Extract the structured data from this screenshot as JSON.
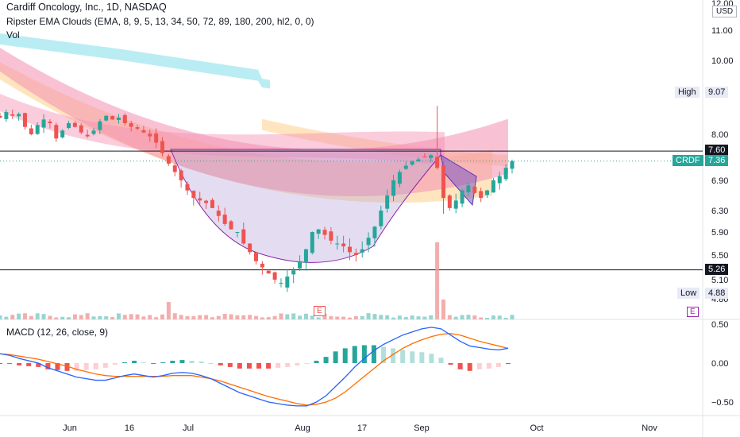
{
  "header": {
    "title": "Cardiff Oncology, Inc., 1D, NASDAQ",
    "indicator": "Ripster EMA Clouds (EMA, 8, 9, 5, 13, 34, 50, 72, 89, 180, 200, hl2, 0, 0)",
    "volume_label": "Vol",
    "currency": "USD"
  },
  "macd_label": "MACD (12, 26, close, 9)",
  "price_tags": {
    "high_label": "High",
    "high_value": "9.07",
    "low_label": "Low",
    "low_value": "4.88",
    "resistance": "7.60",
    "support": "5.26",
    "ticker": "CRDF",
    "last": "7.36"
  },
  "earnings_marker": "E",
  "colors": {
    "up": "#26a69a",
    "down": "#ef5350",
    "macd": "#2962ff",
    "signal": "#ff6d00",
    "pattern_fill": "#b39ddb",
    "cloud_pink": "#f48fb1",
    "cloud_orange": "#ffcc80",
    "cloud_cyan": "#80deea"
  },
  "chart_data": [
    {
      "type": "candlestick",
      "title": "Cardiff Oncology, Inc., 1D, NASDAQ",
      "y_ticks": [
        "12.00",
        "11.00",
        "10.00",
        "8.00",
        "6.90",
        "6.30",
        "5.90",
        "5.50",
        "5.10",
        "4.80"
      ],
      "x_ticks": [
        "Jun",
        "16",
        "Jul",
        "Aug",
        "17",
        "Sep",
        "Oct",
        "Nov"
      ],
      "horizontal_lines": [
        7.6,
        5.26
      ],
      "close_path": [
        8.45,
        8.6,
        8.5,
        8.55,
        8.2,
        8.0,
        8.25,
        8.4,
        8.3,
        7.9,
        8.1,
        8.3,
        8.2,
        8.05,
        7.95,
        8.1,
        8.35,
        8.5,
        8.4,
        8.45,
        8.3,
        8.2,
        8.15,
        8.05,
        7.95,
        7.8,
        7.55,
        7.3,
        7.1,
        6.9,
        6.7,
        6.55,
        6.5,
        6.45,
        6.35,
        6.2,
        6.05,
        5.95,
        5.9,
        5.7,
        5.55,
        5.4,
        5.3,
        5.2,
        5.1,
        5.05,
        5.15,
        5.25,
        5.4,
        5.6,
        5.9,
        5.95,
        5.85,
        5.75,
        5.7,
        5.65,
        5.55,
        5.5,
        5.6,
        5.8,
        6.0,
        6.3,
        6.6,
        6.9,
        7.1,
        7.25,
        7.35,
        7.4,
        7.45,
        7.5,
        7.2,
        6.55,
        6.35,
        6.5,
        6.7,
        6.8,
        6.65,
        6.55,
        6.7,
        6.9,
        7.0,
        7.2,
        7.36
      ]
    },
    {
      "type": "bar",
      "title": "Vol",
      "series": "volume"
    },
    {
      "type": "line",
      "title": "MACD (12, 26, close, 9)",
      "y_ticks": [
        "0.50",
        "0.00",
        "−0.50"
      ],
      "macd": [
        0.12,
        0.1,
        0.06,
        0.03,
        0.0,
        -0.06,
        -0.1,
        -0.14,
        -0.18,
        -0.2,
        -0.22,
        -0.22,
        -0.19,
        -0.16,
        -0.14,
        -0.16,
        -0.18,
        -0.16,
        -0.13,
        -0.12,
        -0.13,
        -0.16,
        -0.2,
        -0.26,
        -0.32,
        -0.38,
        -0.42,
        -0.46,
        -0.5,
        -0.52,
        -0.54,
        -0.55,
        -0.55,
        -0.5,
        -0.42,
        -0.3,
        -0.18,
        -0.05,
        0.06,
        0.16,
        0.24,
        0.3,
        0.36,
        0.4,
        0.44,
        0.46,
        0.44,
        0.36,
        0.28,
        0.22,
        0.2,
        0.18,
        0.17,
        0.19
      ],
      "signal": [
        0.12,
        0.11,
        0.09,
        0.07,
        0.05,
        0.02,
        -0.01,
        -0.04,
        -0.08,
        -0.11,
        -0.14,
        -0.16,
        -0.17,
        -0.17,
        -0.17,
        -0.17,
        -0.17,
        -0.17,
        -0.16,
        -0.16,
        -0.16,
        -0.18,
        -0.2,
        -0.23,
        -0.27,
        -0.31,
        -0.35,
        -0.39,
        -0.43,
        -0.46,
        -0.49,
        -0.52,
        -0.54,
        -0.53,
        -0.5,
        -0.45,
        -0.37,
        -0.27,
        -0.17,
        -0.07,
        0.03,
        0.11,
        0.19,
        0.25,
        0.3,
        0.34,
        0.37,
        0.38,
        0.36,
        0.32,
        0.28,
        0.25,
        0.22,
        0.19
      ]
    }
  ]
}
